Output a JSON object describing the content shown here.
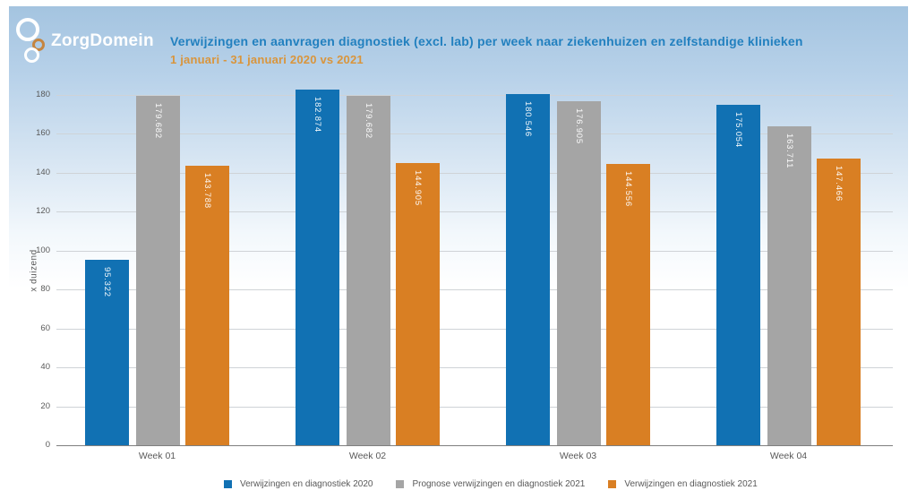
{
  "header": {
    "logo_text": "ZorgDomein",
    "title": "Verwijzingen en aanvragen diagnostiek (excl. lab) per week naar ziekenhuizen en zelfstandige klinieken",
    "subtitle": "1 januari - 31 januari 2020 vs 2021"
  },
  "colors": {
    "panel_gradient_top": "#a4c4e0",
    "panel_gradient_bottom": "#ffffff",
    "title_text": "#2280bf",
    "subtitle_text": "#d9953c",
    "logo_text": "#ffffff",
    "logo_ring_white": "#ffffff",
    "logo_ring_orange": "#c58540",
    "axis_text": "#595959",
    "gridline": "#cfd3d7",
    "axis_line": "#7f7f7f",
    "bar_label_text": "#ffffff"
  },
  "chart_data": {
    "type": "bar",
    "title": "Verwijzingen en aanvragen diagnostiek (excl. lab) per week naar ziekenhuizen en zelfstandige klinieken",
    "subtitle": "1 januari - 31 januari 2020 vs 2021",
    "categories": [
      "Week 01",
      "Week 02",
      "Week 03",
      "Week 04"
    ],
    "series": [
      {
        "name": "Verwijzingen en diagnostiek 2020",
        "color": "#1171b3",
        "values": [
          95322,
          182874,
          180546,
          175054
        ],
        "value_labels": [
          "95.322",
          "182.874",
          "180.546",
          "175.054"
        ]
      },
      {
        "name": "Prognose verwijzingen en diagnostiek 2021",
        "color": "#a5a5a5",
        "values": [
          179682,
          179682,
          176905,
          163711
        ],
        "value_labels": [
          "179.682",
          "179.682",
          "176.905",
          "163.711"
        ]
      },
      {
        "name": "Verwijzingen en diagnostiek 2021",
        "color": "#d97f23",
        "values": [
          143788,
          144905,
          144556,
          147466
        ],
        "value_labels": [
          "143.788",
          "144.905",
          "144.556",
          "147.466"
        ]
      }
    ],
    "xlabel": "",
    "ylabel": "x duizend",
    "unit_divisor": 1000,
    "y_ticks": [
      0,
      20,
      40,
      60,
      80,
      100,
      120,
      140,
      160,
      180
    ],
    "ylim": [
      0,
      180
    ],
    "grid": true,
    "legend_position": "bottom"
  }
}
